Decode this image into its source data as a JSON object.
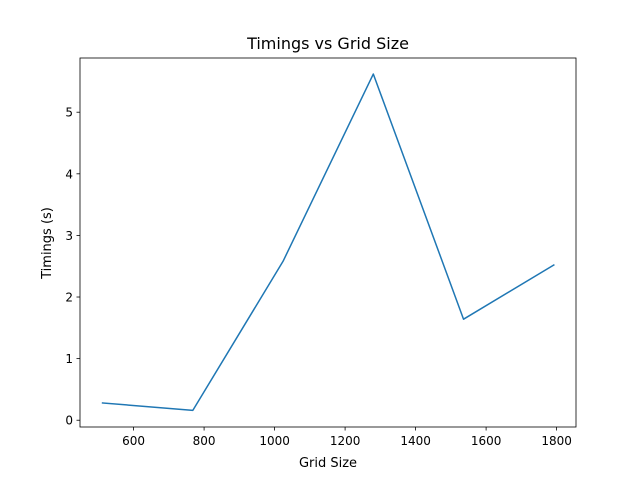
{
  "chart_data": {
    "type": "line",
    "title": "Timings vs Grid Size",
    "xlabel": "Grid Size",
    "ylabel": "Timings (s)",
    "xlim": [
      448,
      1855
    ],
    "ylim": [
      -0.11,
      5.88
    ],
    "xticks": [
      600,
      800,
      1000,
      1200,
      1400,
      1600,
      1800
    ],
    "yticks": [
      0,
      1,
      2,
      3,
      4,
      5
    ],
    "grid": false,
    "series": [
      {
        "color": "#1f77b4",
        "x": [
          512,
          768,
          1024,
          1280,
          1536,
          1792
        ],
        "y": [
          0.28,
          0.16,
          2.58,
          5.62,
          1.64,
          2.52
        ]
      }
    ]
  }
}
